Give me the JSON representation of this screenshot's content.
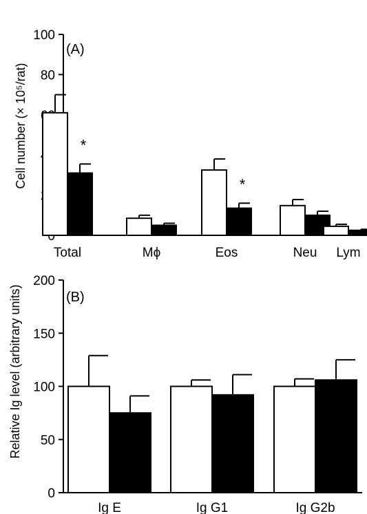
{
  "chart_data": [
    {
      "type": "bar",
      "panel_label": "(A)",
      "ylabel": "Cell number (× 10⁵/rat)",
      "ylim": [
        0,
        100
      ],
      "yticks": [
        0,
        20,
        40,
        60,
        80,
        100
      ],
      "categories": [
        "Total",
        "Mϕ",
        "Eos",
        "Neu",
        "Lym"
      ],
      "series": [
        {
          "fill": "#ffffff",
          "values": [
            61,
            8.5,
            32.5,
            14.8,
            4.5
          ],
          "errors": [
            9,
            1.5,
            5.5,
            3,
            1
          ]
        },
        {
          "fill": "#000000",
          "values": [
            31,
            5,
            13.5,
            10,
            2.5
          ],
          "errors": [
            4.5,
            1,
            2.5,
            2,
            0.5
          ]
        }
      ],
      "annotations": [
        {
          "category": "Total",
          "series": 1,
          "text": "*"
        },
        {
          "category": "Eos",
          "series": 1,
          "text": "*"
        }
      ]
    },
    {
      "type": "bar",
      "panel_label": "(B)",
      "ylabel": "Relative Ig level (arbitrary units)",
      "ylim": [
        0,
        200
      ],
      "yticks": [
        0,
        50,
        100,
        150,
        200
      ],
      "categories": [
        "Ig E",
        "Ig G1",
        "Ig G2b"
      ],
      "series": [
        {
          "fill": "#ffffff",
          "values": [
            100,
            100,
            100
          ],
          "errors": [
            29,
            6,
            7
          ]
        },
        {
          "fill": "#000000",
          "values": [
            75,
            92,
            106
          ],
          "errors": [
            16,
            19,
            19
          ]
        }
      ],
      "annotations": []
    }
  ]
}
